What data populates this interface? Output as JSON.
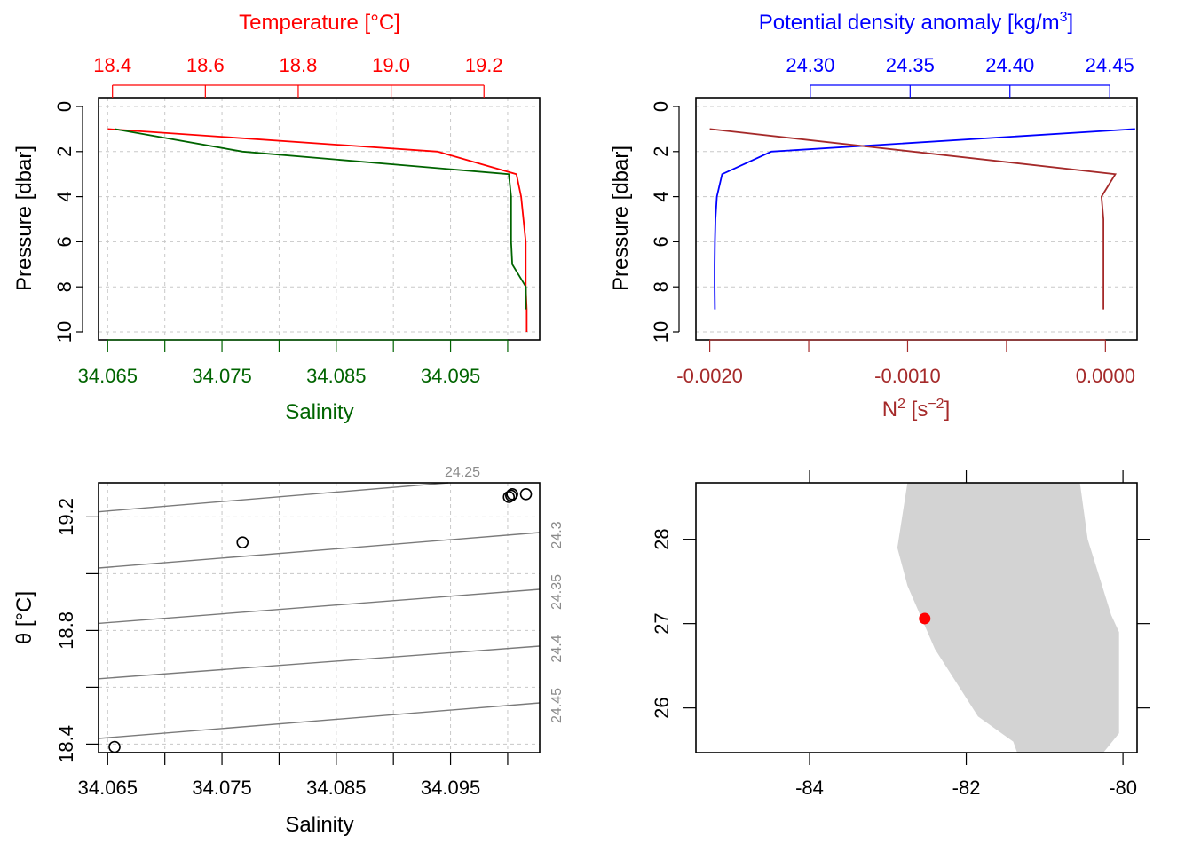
{
  "colors": {
    "temperature": "#ff0000",
    "salinity": "#006400",
    "density": "#0000ff",
    "n2": "#a52a2a",
    "isopycnal": "#7a7a7a",
    "land": "#d3d3d3",
    "station": "#ff0000"
  },
  "chart_data": [
    {
      "type": "line",
      "panel": "profile-temperature-salinity",
      "title": "Temperature [°C]",
      "xlabel": "Salinity",
      "ylabel": "Pressure [dbar]",
      "grid": true,
      "y_reversed": true,
      "ylim": [
        0,
        10
      ],
      "yticks": [
        "0",
        "2",
        "4",
        "6",
        "8",
        "10"
      ],
      "top_axis": {
        "label": "Temperature [°C]",
        "ticks": [
          "18.4",
          "18.6",
          "18.8",
          "19.0",
          "19.2"
        ],
        "lim": [
          18.37,
          19.32
        ]
      },
      "bottom_axis": {
        "label": "Salinity",
        "ticks": [
          "34.065",
          "34.075",
          "34.085",
          "34.095"
        ],
        "minor": [
          34.065,
          34.07,
          34.075,
          34.08,
          34.085,
          34.09,
          34.095,
          34.1
        ],
        "lim": [
          34.0642,
          34.1028
        ]
      },
      "series": [
        {
          "name": "Temperature [°C]",
          "axis": "top",
          "x": [
            18.39,
            19.1,
            19.27,
            19.28,
            19.285,
            19.29,
            19.29,
            19.29,
            19.292,
            19.292
          ],
          "y": [
            1,
            2,
            3,
            4,
            5,
            6,
            7,
            8,
            9,
            10
          ]
        },
        {
          "name": "Salinity",
          "axis": "bottom",
          "x": [
            34.0656,
            34.0768,
            34.1001,
            34.1003,
            34.1003,
            34.1003,
            34.1004,
            34.1016,
            34.1016
          ],
          "y": [
            1,
            2,
            3,
            4,
            5,
            6,
            7,
            8,
            9
          ]
        }
      ]
    },
    {
      "type": "line",
      "panel": "profile-density-n2",
      "title": "Potential density anomaly [kg/m3]",
      "xlabel": "N2 [s-2]",
      "ylabel": "Pressure [dbar]",
      "grid": true,
      "y_reversed": true,
      "ylim": [
        0,
        10
      ],
      "yticks": [
        "0",
        "2",
        "4",
        "6",
        "8",
        "10"
      ],
      "top_axis": {
        "label": "Potential density anomaly [kg/m3]",
        "ticks": [
          "24.30",
          "24.35",
          "24.40",
          "24.45"
        ],
        "lim": [
          24.2427,
          24.4637
        ]
      },
      "bottom_axis": {
        "label": "N2 [s-2]",
        "ticks": [
          "-0.0020",
          "-0.0010",
          "0.0000"
        ],
        "minor": [
          -0.002,
          -0.0015,
          -0.001,
          -0.0005,
          0.0
        ],
        "lim": [
          -0.00207,
          0.00016
        ]
      },
      "series": [
        {
          "name": "Potential density anomaly",
          "axis": "top",
          "x": [
            24.4627,
            24.2805,
            24.2558,
            24.2532,
            24.2525,
            24.2522,
            24.2521,
            24.2521,
            24.2522
          ],
          "y": [
            1,
            2,
            3,
            4,
            5,
            6,
            7,
            8,
            9
          ]
        },
        {
          "name": "N2",
          "axis": "bottom",
          "x": [
            -0.002,
            5e-05,
            -2e-05,
            -1e-05,
            -1e-05,
            -1e-05,
            -1e-05,
            -1e-05
          ],
          "y": [
            1,
            3,
            4,
            5,
            6,
            7,
            8,
            9
          ]
        }
      ]
    },
    {
      "type": "scatter",
      "panel": "ts-diagram",
      "xlabel": "Salinity",
      "ylabel": "θ [°C]",
      "grid": true,
      "xlim": [
        34.0642,
        34.1028
      ],
      "ylim": [
        18.37,
        19.32
      ],
      "xticks": [
        "34.065",
        "34.075",
        "34.085",
        "34.095"
      ],
      "xminor": [
        34.065,
        34.07,
        34.075,
        34.08,
        34.085,
        34.09,
        34.095,
        34.1
      ],
      "yticks": [
        "18.4",
        "18.8",
        "19.2"
      ],
      "yminor": [
        18.4,
        18.6,
        18.8,
        19.0,
        19.2
      ],
      "points": [
        {
          "salinity": 34.0656,
          "theta": 18.39
        },
        {
          "salinity": 34.0768,
          "theta": 19.11
        },
        {
          "salinity": 34.1001,
          "theta": 19.27
        },
        {
          "salinity": 34.1003,
          "theta": 19.275
        },
        {
          "salinity": 34.1004,
          "theta": 19.28
        },
        {
          "salinity": 34.1016,
          "theta": 19.28
        }
      ],
      "isopycnals": [
        {
          "label": "24.25",
          "x": [
            34.0642,
            34.0948
          ],
          "y": [
            19.218,
            19.32
          ]
        },
        {
          "label": "24.3",
          "x": [
            34.0642,
            34.1028
          ],
          "y": [
            19.02,
            19.145
          ]
        },
        {
          "label": "24.35",
          "x": [
            34.0642,
            34.1028
          ],
          "y": [
            18.825,
            18.945
          ]
        },
        {
          "label": "24.4",
          "x": [
            34.0642,
            34.1028
          ],
          "y": [
            18.63,
            18.745
          ]
        },
        {
          "label": "24.45",
          "x": [
            34.0642,
            34.1028
          ],
          "y": [
            18.42,
            18.545
          ]
        }
      ]
    },
    {
      "type": "map",
      "panel": "station-map",
      "xlim": [
        -85.45,
        -79.82
      ],
      "ylim": [
        25.47,
        28.67
      ],
      "xticks": [
        "-84",
        "-82",
        "-80"
      ],
      "yticks": [
        "26",
        "27",
        "28"
      ],
      "land_outline_lonlat": [
        [
          -82.65,
          28.67
        ],
        [
          -80.55,
          28.67
        ],
        [
          -80.45,
          28.0
        ],
        [
          -80.15,
          27.1
        ],
        [
          -80.05,
          26.9
        ],
        [
          -80.05,
          25.7
        ],
        [
          -80.25,
          25.47
        ],
        [
          -81.35,
          25.47
        ],
        [
          -81.4,
          25.6
        ],
        [
          -81.85,
          25.9
        ],
        [
          -82.4,
          26.7
        ],
        [
          -82.75,
          27.45
        ],
        [
          -82.88,
          27.9
        ],
        [
          -82.75,
          28.67
        ]
      ],
      "station": {
        "lon": -82.53,
        "lat": 27.06
      }
    }
  ]
}
